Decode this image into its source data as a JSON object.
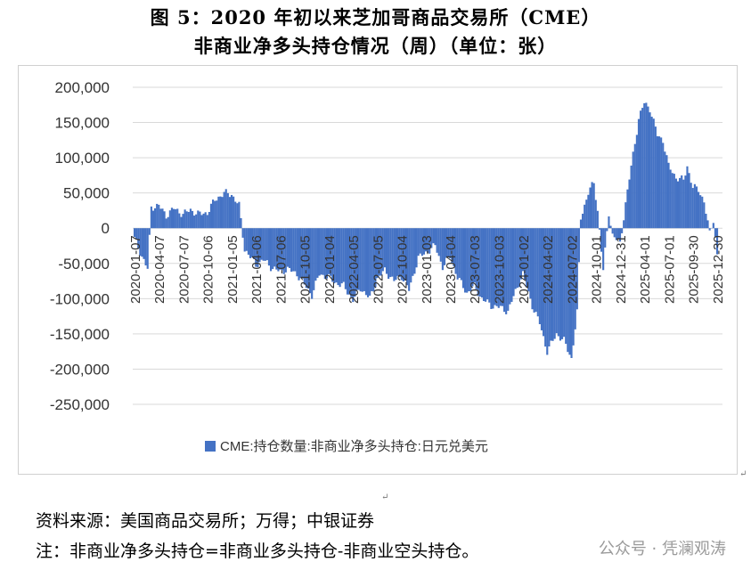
{
  "header": {
    "title_line1": "图 5：2020 年初以来芝加哥商品交易所（CME）",
    "title_line2": "非商业净多头持仓情况（周）（单位：张）"
  },
  "footer": {
    "source": "资料来源：美国商品交易所；万得；中银证券",
    "note": "注：非商业净多头持仓=非商业多头持仓-非商业空头持仓。",
    "watermark": "公众号 · 凭澜观涛"
  },
  "chart_data": {
    "type": "bar",
    "legend_position": "bottom",
    "grid": true,
    "ylim": [
      -250000,
      200000
    ],
    "yticks": [
      200000,
      150000,
      100000,
      50000,
      0,
      -50000,
      -100000,
      -150000,
      -200000,
      -250000
    ],
    "ytick_labels": [
      "200,000",
      "150,000",
      "100,000",
      "50,000",
      "0",
      "-50,000",
      "-100,000",
      "-150,000",
      "-200,000",
      "-250,000"
    ],
    "xtick_labels": [
      "2020-01-07",
      "2020-04-07",
      "2020-07-07",
      "2020-10-06",
      "2021-01-05",
      "2021-04-06",
      "2021-07-06",
      "2021-10-05",
      "2022-01-04",
      "2022-04-05",
      "2022-07-05",
      "2022-10-04",
      "2023-01-03",
      "2023-04-04",
      "2023-07-03",
      "2023-10-03",
      "2024-01-02",
      "2024-04-02",
      "2024-07-02",
      "2024-10-01",
      "2024-12-31",
      "2025-04-01",
      "2025-07-01",
      "2025-09-30",
      "2025-12-30"
    ],
    "series": [
      {
        "name": "CME:持仓数量:非商业净多头持仓:日元兑美元",
        "color": "#4472c4",
        "interval": "weekly",
        "anchor_values": [
          {
            "date": "2020-01-07",
            "value": -15000
          },
          {
            "date": "2020-02-04",
            "value": -40000
          },
          {
            "date": "2020-02-25",
            "value": -58000
          },
          {
            "date": "2020-03-10",
            "value": 30000
          },
          {
            "date": "2020-04-07",
            "value": 32000
          },
          {
            "date": "2020-05-05",
            "value": 18000
          },
          {
            "date": "2020-06-02",
            "value": 28000
          },
          {
            "date": "2020-07-07",
            "value": 20000
          },
          {
            "date": "2020-08-04",
            "value": 26000
          },
          {
            "date": "2020-09-01",
            "value": 20000
          },
          {
            "date": "2020-10-06",
            "value": 22000
          },
          {
            "date": "2020-11-03",
            "value": 40000
          },
          {
            "date": "2020-12-08",
            "value": 50000
          },
          {
            "date": "2021-01-05",
            "value": 48000
          },
          {
            "date": "2021-02-02",
            "value": 32000
          },
          {
            "date": "2021-02-23",
            "value": -30000
          },
          {
            "date": "2021-04-06",
            "value": -52000
          },
          {
            "date": "2021-05-04",
            "value": -45000
          },
          {
            "date": "2021-06-01",
            "value": -55000
          },
          {
            "date": "2021-07-06",
            "value": -62000
          },
          {
            "date": "2021-08-03",
            "value": -58000
          },
          {
            "date": "2021-09-07",
            "value": -65000
          },
          {
            "date": "2021-10-05",
            "value": -80000
          },
          {
            "date": "2021-11-02",
            "value": -95000
          },
          {
            "date": "2021-11-30",
            "value": -65000
          },
          {
            "date": "2022-01-04",
            "value": -70000
          },
          {
            "date": "2022-02-01",
            "value": -78000
          },
          {
            "date": "2022-03-01",
            "value": -82000
          },
          {
            "date": "2022-04-05",
            "value": -102000
          },
          {
            "date": "2022-05-03",
            "value": -85000
          },
          {
            "date": "2022-06-07",
            "value": -100000
          },
          {
            "date": "2022-07-05",
            "value": -72000
          },
          {
            "date": "2022-08-02",
            "value": -60000
          },
          {
            "date": "2022-09-06",
            "value": -75000
          },
          {
            "date": "2022-10-04",
            "value": -68000
          },
          {
            "date": "2022-11-01",
            "value": -88000
          },
          {
            "date": "2022-12-06",
            "value": -42000
          },
          {
            "date": "2023-01-03",
            "value": -35000
          },
          {
            "date": "2023-02-07",
            "value": -25000
          },
          {
            "date": "2023-03-07",
            "value": -55000
          },
          {
            "date": "2023-04-04",
            "value": -40000
          },
          {
            "date": "2023-05-02",
            "value": -70000
          },
          {
            "date": "2023-06-06",
            "value": -92000
          },
          {
            "date": "2023-07-03",
            "value": -82000
          },
          {
            "date": "2023-08-01",
            "value": -100000
          },
          {
            "date": "2023-09-05",
            "value": -110000
          },
          {
            "date": "2023-10-03",
            "value": -112000
          },
          {
            "date": "2023-11-07",
            "value": -118000
          },
          {
            "date": "2023-12-05",
            "value": -90000
          },
          {
            "date": "2024-01-02",
            "value": -65000
          },
          {
            "date": "2024-02-06",
            "value": -110000
          },
          {
            "date": "2024-03-05",
            "value": -135000
          },
          {
            "date": "2024-04-02",
            "value": -175000
          },
          {
            "date": "2024-05-07",
            "value": -150000
          },
          {
            "date": "2024-06-04",
            "value": -160000
          },
          {
            "date": "2024-07-02",
            "value": -185000
          },
          {
            "date": "2024-07-23",
            "value": -120000
          },
          {
            "date": "2024-08-06",
            "value": 15000
          },
          {
            "date": "2024-09-03",
            "value": 50000
          },
          {
            "date": "2024-09-24",
            "value": 65000
          },
          {
            "date": "2024-10-08",
            "value": 25000
          },
          {
            "date": "2024-10-29",
            "value": -60000
          },
          {
            "date": "2024-11-19",
            "value": 22000
          },
          {
            "date": "2024-12-03",
            "value": -10000
          },
          {
            "date": "2024-12-31",
            "value": -22000
          },
          {
            "date": "2025-01-21",
            "value": 35000
          },
          {
            "date": "2025-02-18",
            "value": 105000
          },
          {
            "date": "2025-03-11",
            "value": 155000
          },
          {
            "date": "2025-04-01",
            "value": 178000
          },
          {
            "date": "2025-04-22",
            "value": 170000
          },
          {
            "date": "2025-05-20",
            "value": 132000
          },
          {
            "date": "2025-06-10",
            "value": 125000
          },
          {
            "date": "2025-07-01",
            "value": 88000
          },
          {
            "date": "2025-07-29",
            "value": 72000
          },
          {
            "date": "2025-08-26",
            "value": 68000
          },
          {
            "date": "2025-09-09",
            "value": 88000
          },
          {
            "date": "2025-09-30",
            "value": 58000
          },
          {
            "date": "2025-10-21",
            "value": 55000
          },
          {
            "date": "2025-11-11",
            "value": 38000
          },
          {
            "date": "2025-12-02",
            "value": -8000
          },
          {
            "date": "2025-12-16",
            "value": 12000
          },
          {
            "date": "2025-12-30",
            "value": -38000
          }
        ]
      }
    ]
  }
}
